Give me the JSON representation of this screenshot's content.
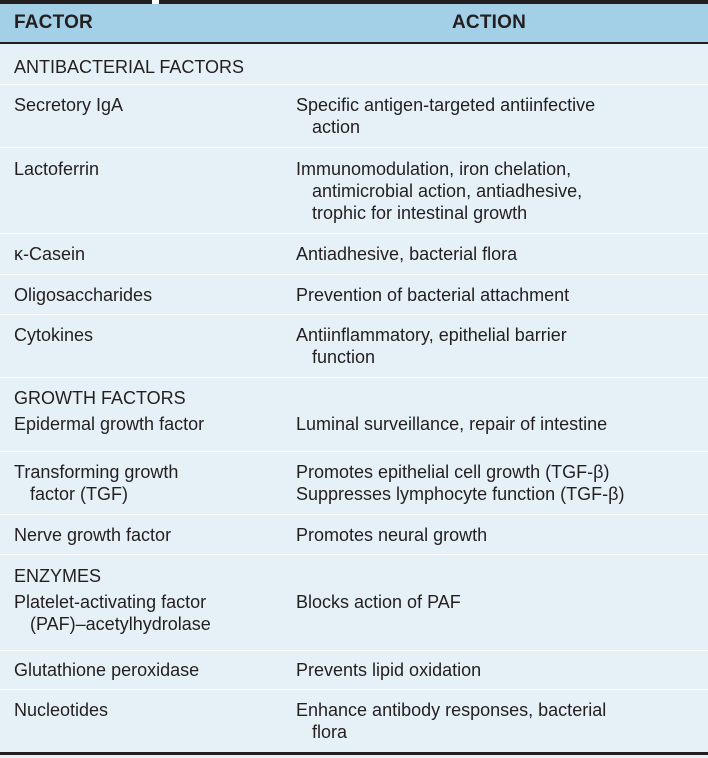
{
  "header": {
    "factor": "FACTOR",
    "action": "ACTION"
  },
  "sections": {
    "antibacterial": "ANTIBACTERIAL FACTORS",
    "growth": "GROWTH FACTORS",
    "enzymes": "ENZYMES"
  },
  "rows": [
    {
      "factor": [
        "Secretory IgA"
      ],
      "action": [
        "Specific antigen-targeted antiinfective",
        "action"
      ]
    },
    {
      "factor": [
        "Lactoferrin"
      ],
      "action": [
        "Immunomodulation, iron chelation,",
        "antimicrobial action, antiadhesive,",
        "trophic for intestinal growth"
      ]
    },
    {
      "factor": [
        "κ-Casein"
      ],
      "action": [
        "Antiadhesive, bacterial flora"
      ]
    },
    {
      "factor": [
        "Oligosaccharides"
      ],
      "action": [
        "Prevention of bacterial attachment"
      ]
    },
    {
      "factor": [
        "Cytokines"
      ],
      "action": [
        "Antiinflammatory, epithelial barrier",
        "function"
      ]
    },
    {
      "factor": [
        "Epidermal growth factor"
      ],
      "action": [
        "Luminal surveillance, repair of intestine"
      ]
    },
    {
      "factor": [
        "Transforming growth",
        "factor (TGF)"
      ],
      "action": [
        "Promotes epithelial cell growth (TGF-β)",
        "Suppresses lymphocyte function (TGF-β)"
      ]
    },
    {
      "factor": [
        "Nerve growth factor"
      ],
      "action": [
        "Promotes neural growth"
      ]
    },
    {
      "factor": [
        "Platelet-activating factor",
        "(PAF)–acetylhydrolase"
      ],
      "action": [
        "Blocks action of PAF"
      ]
    },
    {
      "factor": [
        "Glutathione peroxidase"
      ],
      "action": [
        "Prevents lipid oxidation"
      ]
    },
    {
      "factor": [
        "Nucleotides"
      ],
      "action": [
        "Enhance antibody responses, bacterial",
        "flora"
      ]
    }
  ]
}
